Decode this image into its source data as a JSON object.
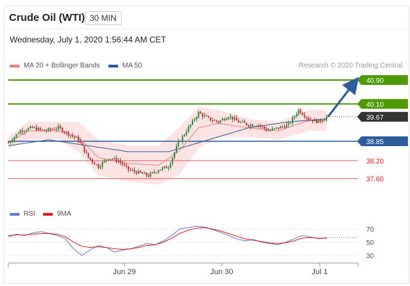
{
  "header": {
    "title": "Crude Oil (WTI)",
    "timeframe": "30 MIN",
    "datetime": "Wednesday, July 1, 2020 1:56:44 AM CET",
    "credit": "Research © 2020 Trading Central"
  },
  "legend": {
    "main": [
      {
        "label": "MA 20 + Bollinger Bands",
        "color": "#f08080"
      },
      {
        "label": "MA 50",
        "color": "#2e5c9a"
      }
    ],
    "rsi": [
      {
        "label": "RSI",
        "color": "#5b7fd1"
      },
      {
        "label": "9MA",
        "color": "#e02020"
      }
    ]
  },
  "colors": {
    "resistance": "#4e9a06",
    "support": "#2e5c9a",
    "target_line": "#e06060",
    "arrow": "#2e5c9a",
    "bollinger": "#fbdfdf",
    "up_candle": "#2f8a3a",
    "down_candle": "#c23030",
    "current_price": "#333333"
  },
  "chart_data": [
    {
      "type": "candlestick",
      "title": "Crude Oil (WTI) 30 MIN",
      "x_ticks": [
        "Jun 29",
        "Jun 30",
        "Jul 1"
      ],
      "ylim": [
        37.3,
        41.0
      ],
      "price_levels": [
        {
          "value": 40.9,
          "label": "40.90",
          "kind": "resistance"
        },
        {
          "value": 40.1,
          "label": "40.10",
          "kind": "resistance"
        },
        {
          "value": 39.67,
          "label": "39.67",
          "kind": "current"
        },
        {
          "value": 38.85,
          "label": "38.85",
          "kind": "support"
        },
        {
          "value": 38.2,
          "label": "38.20",
          "kind": "support"
        },
        {
          "value": 37.6,
          "label": "37.60",
          "kind": "support"
        }
      ],
      "close_path": [
        [
          0,
          38.8
        ],
        [
          6,
          39.2
        ],
        [
          12,
          39.3
        ],
        [
          18,
          39.2
        ],
        [
          25,
          39.3
        ],
        [
          30,
          39.1
        ],
        [
          35,
          38.9
        ],
        [
          40,
          38.3
        ],
        [
          45,
          38.0
        ],
        [
          50,
          38.3
        ],
        [
          55,
          38.2
        ],
        [
          60,
          37.9
        ],
        [
          65,
          37.8
        ],
        [
          70,
          37.7
        ],
        [
          75,
          37.9
        ],
        [
          80,
          38.0
        ],
        [
          85,
          38.8
        ],
        [
          90,
          39.3
        ],
        [
          95,
          39.8
        ],
        [
          100,
          39.6
        ],
        [
          105,
          39.5
        ],
        [
          110,
          39.7
        ],
        [
          115,
          39.5
        ],
        [
          120,
          39.4
        ],
        [
          125,
          39.4
        ],
        [
          130,
          39.2
        ],
        [
          135,
          39.3
        ],
        [
          140,
          39.4
        ],
        [
          145,
          39.9
        ],
        [
          150,
          39.6
        ],
        [
          155,
          39.5
        ],
        [
          159,
          39.67
        ]
      ],
      "ma50_path": [
        [
          0,
          38.7
        ],
        [
          20,
          38.9
        ],
        [
          40,
          38.7
        ],
        [
          60,
          38.5
        ],
        [
          80,
          38.5
        ],
        [
          100,
          38.9
        ],
        [
          120,
          39.3
        ],
        [
          140,
          39.5
        ],
        [
          159,
          39.6
        ]
      ],
      "bollinger_upper": [
        [
          0,
          39.0
        ],
        [
          10,
          39.5
        ],
        [
          25,
          39.5
        ],
        [
          35,
          39.5
        ],
        [
          45,
          38.9
        ],
        [
          60,
          38.7
        ],
        [
          75,
          38.7
        ],
        [
          85,
          39.3
        ],
        [
          95,
          40.0
        ],
        [
          105,
          39.9
        ],
        [
          120,
          39.6
        ],
        [
          135,
          39.5
        ],
        [
          150,
          39.9
        ],
        [
          159,
          39.9
        ]
      ],
      "bollinger_lower": [
        [
          0,
          38.6
        ],
        [
          10,
          38.9
        ],
        [
          25,
          38.9
        ],
        [
          35,
          38.5
        ],
        [
          45,
          37.7
        ],
        [
          60,
          37.5
        ],
        [
          75,
          37.4
        ],
        [
          85,
          37.7
        ],
        [
          95,
          38.6
        ],
        [
          105,
          39.0
        ],
        [
          120,
          39.0
        ],
        [
          135,
          38.9
        ],
        [
          150,
          39.2
        ],
        [
          159,
          39.2
        ]
      ],
      "forecast_arrow": {
        "from": 39.67,
        "to": 40.9
      }
    },
    {
      "type": "line",
      "title": "RSI",
      "y_ticks": [
        70,
        50,
        30
      ],
      "ylim": [
        20,
        80
      ],
      "series": [
        {
          "name": "RSI",
          "color": "#5b7fd1",
          "values": [
            58,
            62,
            60,
            64,
            66,
            63,
            60,
            55,
            40,
            30,
            38,
            45,
            42,
            35,
            38,
            40,
            44,
            48,
            46,
            52,
            60,
            70,
            72,
            74,
            73,
            69,
            65,
            60,
            55,
            52,
            54,
            50,
            48,
            46,
            50,
            55,
            60,
            58,
            55,
            57
          ]
        },
        {
          "name": "9MA",
          "color": "#e02020",
          "values": [
            60,
            61,
            61,
            62,
            63,
            63,
            62,
            58,
            50,
            44,
            42,
            43,
            42,
            40,
            39,
            40,
            42,
            45,
            46,
            50,
            56,
            63,
            68,
            71,
            72,
            70,
            67,
            63,
            59,
            55,
            53,
            51,
            49,
            48,
            49,
            52,
            56,
            57,
            56,
            56
          ]
        }
      ]
    }
  ]
}
